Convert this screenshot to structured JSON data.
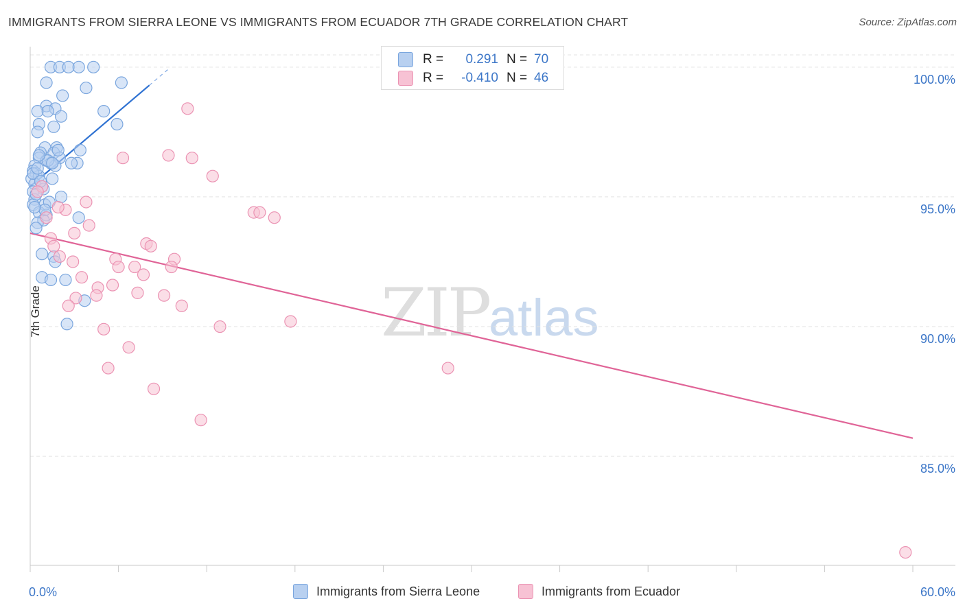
{
  "title": "IMMIGRANTS FROM SIERRA LEONE VS IMMIGRANTS FROM ECUADOR 7TH GRADE CORRELATION CHART",
  "source": "Source: ZipAtlas.com",
  "watermark": {
    "zip": "ZIP",
    "atlas": "atlas"
  },
  "legend": {
    "r_label": "R =",
    "n_label": "N =",
    "series": [
      {
        "r": "0.291",
        "n": "70",
        "fill": "#b8d0f0",
        "stroke": "#7aa6de"
      },
      {
        "r": "-0.410",
        "n": "46",
        "fill": "#f7c2d4",
        "stroke": "#eb93b3"
      }
    ]
  },
  "bottom_legend": [
    "Immigrants from Sierra Leone",
    "Immigrants from Ecuador"
  ],
  "chart_data": {
    "type": "scatter",
    "title": "IMMIGRANTS FROM SIERRA LEONE VS IMMIGRANTS FROM ECUADOR 7TH GRADE CORRELATION CHART",
    "xlabel": "",
    "ylabel": "7th Grade",
    "xlim": [
      0,
      60
    ],
    "ylim": [
      80.8,
      101.0
    ],
    "x_tick_labels": [
      "0.0%",
      "60.0%"
    ],
    "y_ticks": [
      85,
      90,
      95,
      100
    ],
    "y_tick_labels": [
      "85.0%",
      "90.0%",
      "95.0%",
      "100.0%"
    ],
    "series": [
      {
        "name": "Immigrants from Sierra Leone",
        "color": "#5b8fd6",
        "line_color": "#2f72d2",
        "trend": {
          "x0": 0.0,
          "y0": 95.4,
          "x1": 8.1,
          "y1": 99.3,
          "dash_x1": 9.5
        },
        "points": [
          [
            1.4,
            100.0
          ],
          [
            2.0,
            100.0
          ],
          [
            2.6,
            100.0
          ],
          [
            3.3,
            100.0
          ],
          [
            4.3,
            100.0
          ],
          [
            1.1,
            99.4
          ],
          [
            3.8,
            99.2
          ],
          [
            6.2,
            99.4
          ],
          [
            2.2,
            98.9
          ],
          [
            1.1,
            98.5
          ],
          [
            1.7,
            98.4
          ],
          [
            5.0,
            98.3
          ],
          [
            0.5,
            98.3
          ],
          [
            1.2,
            98.3
          ],
          [
            2.1,
            98.1
          ],
          [
            0.6,
            97.8
          ],
          [
            1.6,
            97.7
          ],
          [
            5.9,
            97.8
          ],
          [
            0.5,
            97.5
          ],
          [
            1.0,
            96.9
          ],
          [
            1.8,
            96.9
          ],
          [
            3.4,
            96.8
          ],
          [
            1.6,
            96.7
          ],
          [
            0.7,
            96.7
          ],
          [
            0.6,
            96.5
          ],
          [
            1.1,
            96.4
          ],
          [
            1.4,
            96.3
          ],
          [
            2.0,
            96.5
          ],
          [
            3.2,
            96.3
          ],
          [
            2.8,
            96.3
          ],
          [
            0.3,
            96.2
          ],
          [
            1.7,
            96.2
          ],
          [
            0.2,
            96.0
          ],
          [
            0.4,
            95.9
          ],
          [
            0.1,
            95.7
          ],
          [
            0.6,
            95.8
          ],
          [
            1.5,
            95.7
          ],
          [
            0.8,
            95.4
          ],
          [
            0.3,
            95.5
          ],
          [
            0.9,
            95.3
          ],
          [
            0.2,
            95.2
          ],
          [
            2.1,
            95.0
          ],
          [
            0.3,
            94.9
          ],
          [
            0.2,
            94.7
          ],
          [
            1.0,
            94.7
          ],
          [
            1.3,
            94.8
          ],
          [
            0.6,
            94.4
          ],
          [
            1.1,
            94.3
          ],
          [
            0.9,
            94.1
          ],
          [
            3.3,
            94.2
          ],
          [
            0.5,
            94.0
          ],
          [
            0.4,
            93.8
          ],
          [
            0.8,
            92.8
          ],
          [
            1.6,
            92.7
          ],
          [
            1.7,
            92.5
          ],
          [
            0.8,
            91.9
          ],
          [
            1.4,
            91.8
          ],
          [
            2.4,
            91.8
          ],
          [
            3.7,
            91.0
          ],
          [
            2.5,
            90.1
          ],
          [
            0.2,
            95.9
          ],
          [
            0.5,
            96.1
          ],
          [
            1.2,
            96.4
          ],
          [
            0.4,
            95.1
          ],
          [
            1.0,
            94.5
          ],
          [
            0.7,
            95.6
          ],
          [
            1.9,
            96.8
          ],
          [
            1.5,
            96.3
          ],
          [
            0.3,
            94.6
          ],
          [
            0.6,
            96.6
          ]
        ]
      },
      {
        "name": "Immigrants from Ecuador",
        "color": "#ea8fb0",
        "line_color": "#e06497",
        "trend": {
          "x0": 0.0,
          "y0": 93.6,
          "x1": 60.0,
          "y1": 85.7
        },
        "points": [
          [
            10.7,
            98.4
          ],
          [
            6.3,
            96.5
          ],
          [
            9.4,
            96.6
          ],
          [
            11.0,
            96.5
          ],
          [
            12.4,
            95.8
          ],
          [
            0.8,
            95.4
          ],
          [
            3.8,
            94.8
          ],
          [
            2.4,
            94.5
          ],
          [
            15.2,
            94.4
          ],
          [
            15.6,
            94.4
          ],
          [
            16.6,
            94.2
          ],
          [
            1.1,
            94.2
          ],
          [
            4.0,
            93.9
          ],
          [
            1.4,
            93.4
          ],
          [
            7.9,
            93.2
          ],
          [
            8.2,
            93.1
          ],
          [
            1.6,
            93.1
          ],
          [
            2.0,
            92.7
          ],
          [
            5.8,
            92.6
          ],
          [
            9.8,
            92.6
          ],
          [
            2.9,
            92.5
          ],
          [
            6.0,
            92.3
          ],
          [
            7.1,
            92.3
          ],
          [
            9.6,
            92.3
          ],
          [
            7.7,
            92.0
          ],
          [
            3.5,
            91.9
          ],
          [
            5.6,
            91.6
          ],
          [
            4.6,
            91.5
          ],
          [
            7.3,
            91.3
          ],
          [
            3.1,
            91.1
          ],
          [
            9.1,
            91.2
          ],
          [
            4.5,
            91.2
          ],
          [
            2.6,
            90.8
          ],
          [
            10.3,
            90.8
          ],
          [
            12.9,
            90.0
          ],
          [
            17.7,
            90.2
          ],
          [
            5.0,
            89.9
          ],
          [
            6.7,
            89.2
          ],
          [
            5.3,
            88.4
          ],
          [
            28.4,
            88.4
          ],
          [
            8.4,
            87.6
          ],
          [
            11.6,
            86.4
          ],
          [
            59.5,
            81.3
          ],
          [
            0.5,
            95.2
          ],
          [
            1.9,
            94.6
          ],
          [
            3.0,
            93.6
          ]
        ]
      }
    ]
  }
}
